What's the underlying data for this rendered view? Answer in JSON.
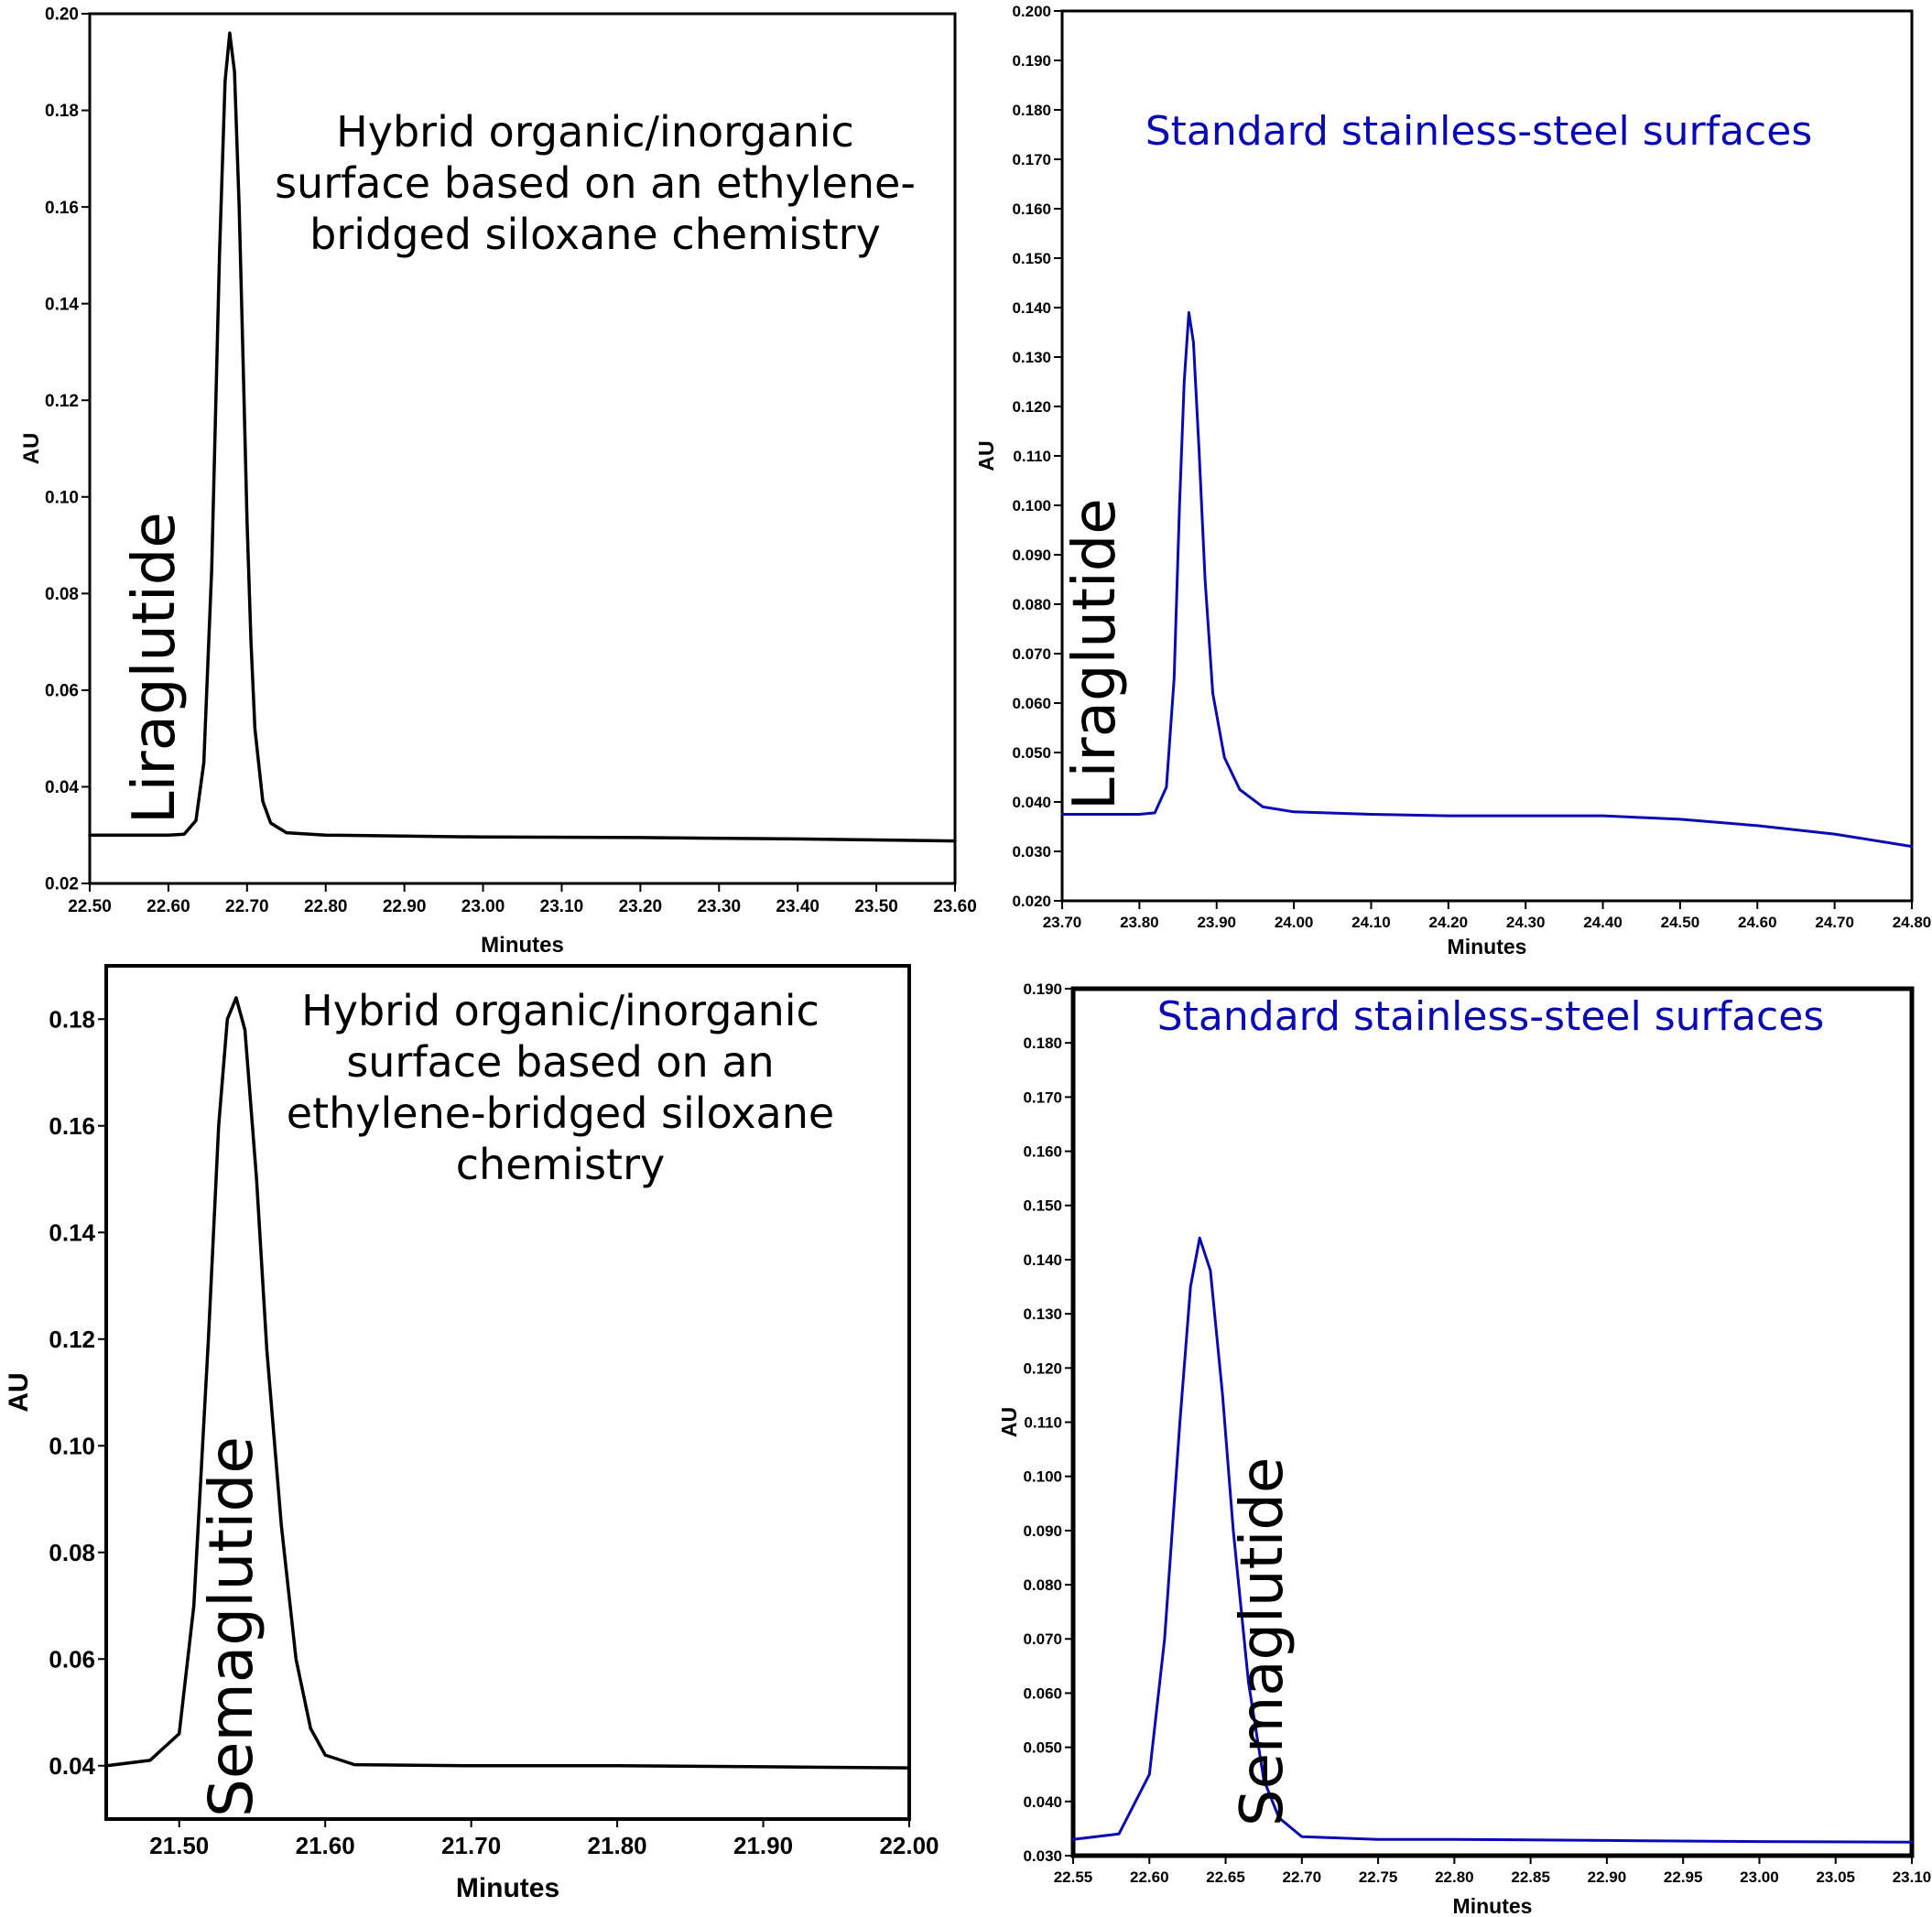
{
  "chart_data": [
    {
      "type": "line",
      "color": "#000000",
      "annotation": [
        "Hybrid organic/inorganic",
        "surface based on an ethylene-",
        "bridged siloxane chemistry"
      ],
      "peak_label": "Liraglutide",
      "xlabel": "Minutes",
      "ylabel": "AU",
      "xlim": [
        22.5,
        23.6
      ],
      "ylim": [
        0.02,
        0.2
      ],
      "x_ticks": [
        "22.50",
        "22.60",
        "22.70",
        "22.80",
        "22.90",
        "23.00",
        "23.10",
        "23.20",
        "23.30",
        "23.40",
        "23.50",
        "23.60"
      ],
      "y_ticks": [
        "0.02",
        "0.04",
        "0.06",
        "0.08",
        "0.10",
        "0.12",
        "0.14",
        "0.16",
        "0.18",
        "0.20"
      ],
      "series": [
        {
          "x": [
            22.5,
            22.6,
            22.62,
            22.635,
            22.645,
            22.655,
            22.665,
            22.672,
            22.678,
            22.684,
            22.69,
            22.695,
            22.7,
            22.705,
            22.71,
            22.72,
            22.73,
            22.75,
            22.8,
            23.0,
            23.2,
            23.4,
            23.6
          ],
          "y": [
            0.03,
            0.03,
            0.0302,
            0.033,
            0.045,
            0.085,
            0.15,
            0.186,
            0.196,
            0.188,
            0.16,
            0.128,
            0.095,
            0.07,
            0.052,
            0.037,
            0.0325,
            0.0305,
            0.03,
            0.0296,
            0.0295,
            0.0292,
            0.0288
          ]
        }
      ]
    },
    {
      "type": "line",
      "color": "#0a0ab4",
      "annotation": [
        "Standard stainless-steel surfaces"
      ],
      "peak_label": "Liraglutide",
      "xlabel": "Minutes",
      "ylabel": "AU",
      "xlim": [
        23.7,
        24.8
      ],
      "ylim": [
        0.02,
        0.2
      ],
      "x_ticks": [
        "23.70",
        "23.80",
        "23.90",
        "24.00",
        "24.10",
        "24.20",
        "24.30",
        "24.40",
        "24.50",
        "24.60",
        "24.70",
        "24.80"
      ],
      "y_ticks": [
        "0.020",
        "0.030",
        "0.040",
        "0.050",
        "0.060",
        "0.070",
        "0.080",
        "0.090",
        "0.100",
        "0.110",
        "0.120",
        "0.130",
        "0.140",
        "0.150",
        "0.160",
        "0.170",
        "0.180",
        "0.190",
        "0.200"
      ],
      "series": [
        {
          "x": [
            23.7,
            23.8,
            23.82,
            23.835,
            23.845,
            23.852,
            23.858,
            23.864,
            23.87,
            23.877,
            23.885,
            23.895,
            23.91,
            23.93,
            23.96,
            24.0,
            24.1,
            24.2,
            24.4,
            24.5,
            24.6,
            24.7,
            24.8
          ],
          "y": [
            0.0375,
            0.0375,
            0.0378,
            0.043,
            0.065,
            0.1,
            0.125,
            0.139,
            0.133,
            0.112,
            0.085,
            0.062,
            0.049,
            0.0425,
            0.039,
            0.038,
            0.0375,
            0.0372,
            0.0372,
            0.0365,
            0.0352,
            0.0335,
            0.031
          ]
        }
      ]
    },
    {
      "type": "line",
      "color": "#000000",
      "annotation": [
        "Hybrid organic/inorganic",
        "surface based on an",
        "ethylene-bridged siloxane",
        "chemistry"
      ],
      "peak_label": "Semaglutide",
      "xlabel": "Minutes",
      "ylabel": "AU",
      "xlim": [
        21.45,
        22.0
      ],
      "ylim": [
        0.03,
        0.19
      ],
      "x_ticks": [
        "21.50",
        "21.60",
        "21.70",
        "21.80",
        "21.90",
        "22.00"
      ],
      "y_ticks": [
        "0.04",
        "0.06",
        "0.08",
        "0.10",
        "0.12",
        "0.14",
        "0.16",
        "0.18"
      ],
      "series": [
        {
          "x": [
            21.45,
            21.48,
            21.5,
            21.51,
            21.52,
            21.527,
            21.533,
            21.539,
            21.545,
            21.553,
            21.56,
            21.57,
            21.58,
            21.59,
            21.6,
            21.62,
            21.7,
            21.8,
            21.9,
            22.0
          ],
          "y": [
            0.04,
            0.041,
            0.046,
            0.07,
            0.12,
            0.16,
            0.18,
            0.184,
            0.178,
            0.15,
            0.118,
            0.085,
            0.06,
            0.047,
            0.042,
            0.0402,
            0.04,
            0.04,
            0.0398,
            0.0396
          ]
        }
      ]
    },
    {
      "type": "line",
      "color": "#0a0ab4",
      "annotation": [
        "Standard stainless-steel surfaces"
      ],
      "peak_label": "Semaglutide",
      "xlabel": "Minutes",
      "ylabel": "AU",
      "xlim": [
        22.55,
        23.1
      ],
      "ylim": [
        0.03,
        0.19
      ],
      "x_ticks": [
        "22.55",
        "22.60",
        "22.65",
        "22.70",
        "22.75",
        "22.80",
        "22.85",
        "22.90",
        "22.95",
        "23.00",
        "23.05",
        "23.10"
      ],
      "y_ticks": [
        "0.030",
        "0.040",
        "0.050",
        "0.060",
        "0.070",
        "0.080",
        "0.090",
        "0.100",
        "0.110",
        "0.120",
        "0.130",
        "0.140",
        "0.150",
        "0.160",
        "0.170",
        "0.180",
        "0.190"
      ],
      "series": [
        {
          "x": [
            22.55,
            22.58,
            22.6,
            22.61,
            22.62,
            22.627,
            22.633,
            22.64,
            22.648,
            22.655,
            22.665,
            22.675,
            22.685,
            22.7,
            22.75,
            22.8,
            22.9,
            23.0,
            23.1
          ],
          "y": [
            0.033,
            0.034,
            0.045,
            0.07,
            0.11,
            0.135,
            0.144,
            0.138,
            0.115,
            0.09,
            0.062,
            0.044,
            0.037,
            0.0335,
            0.033,
            0.033,
            0.0328,
            0.0326,
            0.0325
          ]
        }
      ]
    }
  ]
}
